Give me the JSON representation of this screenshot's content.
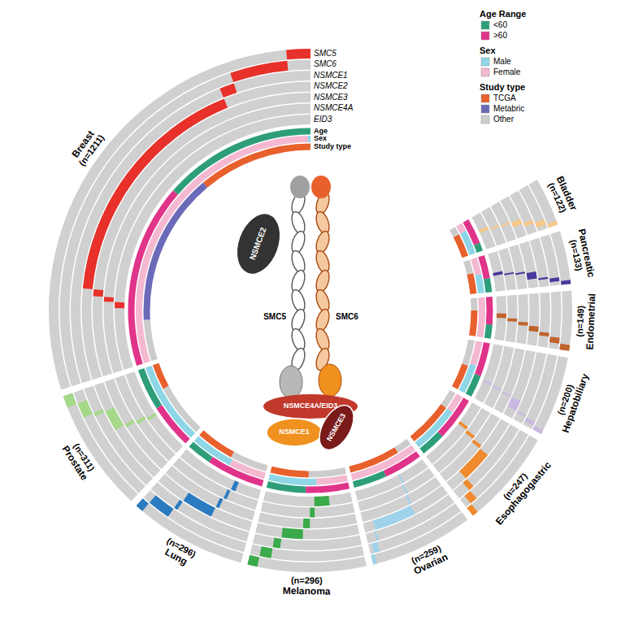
{
  "chart_data": {
    "type": "oncoprint",
    "genes": [
      "SMC5",
      "SMC6",
      "NSMCE1",
      "NSMCE2",
      "NSMCE3",
      "NSMCE4A",
      "EID3"
    ],
    "tracks": [
      "Age",
      "Sex",
      "Study type"
    ],
    "cancer_types": [
      {
        "name": "Breast",
        "n_label": "(n=1211)",
        "n": 1211,
        "color": "#e8312a",
        "altered": [
          60,
          150,
          40,
          700,
          20,
          15,
          20
        ],
        "age": [
          550,
          661
        ],
        "sex": [
          10,
          1201
        ],
        "study": [
          450,
          600,
          161
        ]
      },
      {
        "name": "Prostate",
        "n_label": "(n=311)",
        "n": 311,
        "color": "#a6d88a",
        "altered": [
          30,
          40,
          10,
          60,
          10,
          10,
          10
        ],
        "age": [
          150,
          161
        ],
        "sex": [
          311,
          0
        ],
        "study": [
          100,
          0,
          211
        ]
      },
      {
        "name": "Lung",
        "n_label": "(n=296)",
        "n": 296,
        "color": "#2b7bc0",
        "altered": [
          20,
          60,
          10,
          90,
          10,
          10,
          15
        ],
        "age": [
          90,
          206
        ],
        "sex": [
          160,
          136
        ],
        "study": [
          150,
          0,
          146
        ]
      },
      {
        "name": "Melanoma",
        "n_label": "(n=296)",
        "n": 296,
        "color": "#3aaa4a",
        "altered": [
          25,
          30,
          20,
          60,
          20,
          15,
          50
        ],
        "age": [
          140,
          156
        ],
        "sex": [
          180,
          116
        ],
        "study": [
          150,
          0,
          146
        ]
      },
      {
        "name": "Ovarian",
        "n_label": "(n=259)",
        "n": 259,
        "color": "#9fd3ec",
        "altered": [
          10,
          15,
          5,
          120,
          5,
          5,
          5
        ],
        "age": [
          120,
          139
        ],
        "sex": [
          0,
          259
        ],
        "study": [
          200,
          0,
          59
        ]
      },
      {
        "name": "Esophagogastric",
        "n_label": "(n=247)",
        "n": 247,
        "color": "#f08a2c",
        "altered": [
          15,
          20,
          15,
          90,
          10,
          10,
          10
        ],
        "age": [
          90,
          157
        ],
        "sex": [
          180,
          67
        ],
        "study": [
          180,
          0,
          67
        ]
      },
      {
        "name": "Hepatobiliary",
        "n_label": "(n=200)",
        "n": 200,
        "color": "#c9b8e0",
        "altered": [
          10,
          10,
          5,
          30,
          5,
          5,
          5
        ],
        "age": [
          80,
          120
        ],
        "sex": [
          110,
          90
        ],
        "study": [
          100,
          0,
          100
        ]
      },
      {
        "name": "Endometrial",
        "n_label": "(n=149)",
        "n": 149,
        "color": "#c0622a",
        "altered": [
          15,
          15,
          10,
          15,
          10,
          10,
          15
        ],
        "age": [
          50,
          99
        ],
        "sex": [
          0,
          149
        ],
        "study": [
          100,
          0,
          49
        ]
      },
      {
        "name": "Pancreatic",
        "n_label": "(n=133)",
        "n": 133,
        "color": "#4a3a9c",
        "altered": [
          10,
          10,
          5,
          20,
          5,
          5,
          10
        ],
        "age": [
          50,
          83
        ],
        "sex": [
          70,
          63
        ],
        "study": [
          80,
          0,
          53
        ]
      },
      {
        "name": "Bladder",
        "n_label": "(n=122)",
        "n": 122,
        "color": "#f8c888",
        "altered": [
          10,
          15,
          10,
          15,
          5,
          5,
          10
        ],
        "age": [
          30,
          92
        ],
        "sex": [
          90,
          32
        ],
        "study": [
          90,
          0,
          32
        ]
      }
    ],
    "legend_groups": [
      {
        "title": "Age Range",
        "items": [
          {
            "label": "<60",
            "color": "#2e9e7a"
          },
          {
            "label": ">60",
            "color": "#e0338a"
          }
        ]
      },
      {
        "title": "Sex",
        "items": [
          {
            "label": "Male",
            "color": "#8ed6e6"
          },
          {
            "label": "Female",
            "color": "#f4b8d0"
          }
        ]
      },
      {
        "title": "Study type",
        "items": [
          {
            "label": "TCGA",
            "color": "#e8602c"
          },
          {
            "label": "Metabric",
            "color": "#6a6ab8"
          },
          {
            "label": "Other",
            "color": "#cccccc"
          }
        ]
      }
    ],
    "diagram": {
      "smc5": "SMC5",
      "smc6": "SMC6",
      "nsmce2": "NSMCE2",
      "nsmce4a_eid3": "NSMCE4A/EID3",
      "nsmce1": "NSMCE1",
      "nsmce3": "NSMCE3"
    }
  }
}
